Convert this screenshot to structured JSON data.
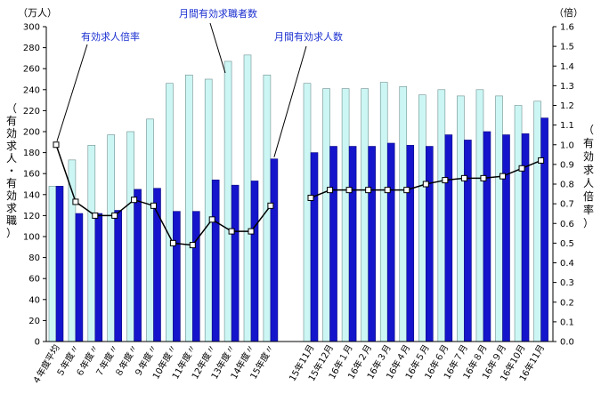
{
  "chart_data": {
    "type": "bar",
    "left_unit": "（万人）",
    "right_unit": "（倍）",
    "left_axis_label": "（有効求人・有効求職）",
    "right_axis_label": "（有効求人倍率）",
    "left_ylim": [
      0,
      300
    ],
    "left_ticks": [
      "0",
      "20",
      "40",
      "60",
      "80",
      "100",
      "120",
      "140",
      "160",
      "180",
      "200",
      "220",
      "240",
      "260",
      "280",
      "300"
    ],
    "right_ylim": [
      0,
      1.6
    ],
    "right_ticks": [
      "0.0",
      "0.1",
      "0.2",
      "0.3",
      "0.4",
      "0.5",
      "0.6",
      "0.7",
      "0.8",
      "0.9",
      "1.0",
      "1.1",
      "1.2",
      "1.3",
      "1.4",
      "1.5",
      "1.6"
    ],
    "grid": false,
    "categories": [
      "４年度平均",
      "５年度〃",
      "６年度〃",
      "７年度〃",
      "８年度〃",
      "９年度〃",
      "10年度〃",
      "11年度〃",
      "12年度〃",
      "13年度〃",
      "14年度〃",
      "15年度〃",
      "15年11月",
      "15年12月",
      "16年１月",
      "16年２月",
      "16年３月",
      "16年４月",
      "16年５月",
      "16年６月",
      "16年７月",
      "16年８月",
      "16年９月",
      "16年10月",
      "16年11月"
    ],
    "series": [
      {
        "name": "月間有効求職者数",
        "axis": "left",
        "color": "#ccf6f4",
        "values": [
          148,
          173,
          187,
          197,
          200,
          212,
          246,
          254,
          250,
          267,
          273,
          254,
          246,
          241,
          241,
          241,
          247,
          243,
          235,
          240,
          234,
          240,
          234,
          225,
          229
        ]
      },
      {
        "name": "月間有効求人数",
        "axis": "left",
        "color": "#1515cc",
        "values": [
          148,
          122,
          122,
          125,
          145,
          146,
          124,
          124,
          154,
          149,
          153,
          174,
          180,
          186,
          186,
          186,
          189,
          187,
          186,
          197,
          192,
          200,
          197,
          198,
          213
        ]
      },
      {
        "name": "有効求人倍率",
        "axis": "right",
        "type": "line",
        "values": [
          1.0,
          0.71,
          0.64,
          0.64,
          0.72,
          0.69,
          0.5,
          0.49,
          0.62,
          0.56,
          0.56,
          0.69,
          0.73,
          0.77,
          0.77,
          0.77,
          0.77,
          0.77,
          0.8,
          0.82,
          0.83,
          0.83,
          0.84,
          0.88,
          0.92
        ]
      }
    ]
  }
}
